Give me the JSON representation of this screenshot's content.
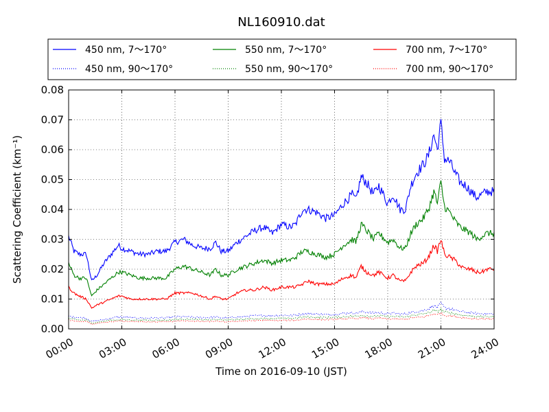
{
  "chart_data": {
    "type": "line",
    "title": "NL160910.dat",
    "xlabel": "Time on 2016-09-10 (JST)",
    "ylabel": "Scattering Coefficient (km⁻¹)",
    "xlim": [
      0,
      24
    ],
    "ylim": [
      0,
      0.08
    ],
    "x_ticks": [
      0,
      3,
      6,
      9,
      12,
      15,
      18,
      21,
      24
    ],
    "x_tick_labels": [
      "00:00",
      "03:00",
      "06:00",
      "09:00",
      "12:00",
      "15:00",
      "18:00",
      "21:00",
      "24:00"
    ],
    "y_ticks": [
      0,
      0.01,
      0.02,
      0.03,
      0.04,
      0.05,
      0.06,
      0.07,
      0.08
    ],
    "y_tick_labels": [
      "0.00",
      "0.01",
      "0.02",
      "0.03",
      "0.04",
      "0.05",
      "0.06",
      "0.07",
      "0.08"
    ],
    "grid": true,
    "legend_position": "top",
    "x_hours": [
      0,
      0.3,
      0.6,
      1.0,
      1.3,
      1.6,
      2.0,
      2.4,
      2.8,
      3.0,
      3.5,
      4.0,
      4.5,
      5.0,
      5.5,
      6.0,
      6.5,
      7.0,
      7.5,
      8.0,
      8.3,
      8.6,
      9.0,
      9.5,
      10.0,
      10.5,
      11.0,
      11.5,
      12.0,
      12.5,
      12.8,
      13.2,
      13.5,
      14.0,
      14.5,
      15.0,
      15.5,
      16.0,
      16.2,
      16.5,
      16.8,
      17.2,
      17.5,
      18.0,
      18.3,
      18.7,
      19.0,
      19.3,
      19.6,
      20.0,
      20.3,
      20.6,
      20.8,
      21.0,
      21.2,
      21.5,
      21.8,
      22.1,
      22.4,
      22.7,
      23.0,
      23.3,
      23.6,
      24.0
    ],
    "series": [
      {
        "name": "450 nm, 7～170°",
        "color": "#0000ff",
        "style": "solid",
        "values": [
          0.031,
          0.026,
          0.025,
          0.025,
          0.016,
          0.018,
          0.022,
          0.025,
          0.028,
          0.027,
          0.026,
          0.025,
          0.025,
          0.026,
          0.026,
          0.029,
          0.03,
          0.028,
          0.027,
          0.027,
          0.029,
          0.026,
          0.026,
          0.029,
          0.031,
          0.033,
          0.034,
          0.032,
          0.035,
          0.034,
          0.035,
          0.04,
          0.04,
          0.039,
          0.037,
          0.038,
          0.042,
          0.045,
          0.043,
          0.051,
          0.049,
          0.045,
          0.048,
          0.042,
          0.045,
          0.04,
          0.04,
          0.048,
          0.052,
          0.055,
          0.058,
          0.065,
          0.06,
          0.069,
          0.057,
          0.056,
          0.052,
          0.049,
          0.048,
          0.046,
          0.044,
          0.045,
          0.046,
          0.046
        ]
      },
      {
        "name": "450 nm, 90～170°",
        "color": "#0000ff",
        "style": "dotted",
        "values": [
          0.0042,
          0.004,
          0.0038,
          0.0036,
          0.0025,
          0.0027,
          0.0032,
          0.0036,
          0.004,
          0.004,
          0.0038,
          0.0036,
          0.0036,
          0.0037,
          0.0037,
          0.004,
          0.0041,
          0.0039,
          0.0038,
          0.0038,
          0.004,
          0.0037,
          0.0037,
          0.004,
          0.0042,
          0.0044,
          0.0045,
          0.0044,
          0.0046,
          0.0045,
          0.0046,
          0.005,
          0.0051,
          0.005,
          0.0048,
          0.0049,
          0.0052,
          0.0054,
          0.0052,
          0.0058,
          0.0056,
          0.0053,
          0.0055,
          0.0051,
          0.0053,
          0.005,
          0.005,
          0.0055,
          0.0058,
          0.0062,
          0.0068,
          0.0078,
          0.0072,
          0.0085,
          0.007,
          0.0068,
          0.0062,
          0.0058,
          0.0056,
          0.0054,
          0.0052,
          0.0051,
          0.005,
          0.005
        ]
      },
      {
        "name": "550 nm, 7～170°",
        "color": "#008000",
        "style": "solid",
        "values": [
          0.022,
          0.018,
          0.017,
          0.017,
          0.011,
          0.013,
          0.015,
          0.017,
          0.019,
          0.019,
          0.018,
          0.017,
          0.017,
          0.017,
          0.017,
          0.02,
          0.021,
          0.02,
          0.019,
          0.018,
          0.02,
          0.018,
          0.018,
          0.02,
          0.021,
          0.022,
          0.023,
          0.022,
          0.023,
          0.023,
          0.024,
          0.026,
          0.026,
          0.025,
          0.024,
          0.025,
          0.028,
          0.03,
          0.029,
          0.035,
          0.033,
          0.03,
          0.032,
          0.029,
          0.03,
          0.027,
          0.027,
          0.032,
          0.035,
          0.037,
          0.04,
          0.046,
          0.042,
          0.049,
          0.041,
          0.039,
          0.036,
          0.034,
          0.033,
          0.032,
          0.03,
          0.031,
          0.032,
          0.032
        ]
      },
      {
        "name": "550 nm, 90～170°",
        "color": "#008000",
        "style": "dotted",
        "values": [
          0.0035,
          0.0032,
          0.003,
          0.0029,
          0.002,
          0.0022,
          0.0026,
          0.0029,
          0.0031,
          0.0031,
          0.003,
          0.0029,
          0.0029,
          0.0029,
          0.0029,
          0.0032,
          0.0033,
          0.0032,
          0.0031,
          0.003,
          0.0032,
          0.003,
          0.003,
          0.0032,
          0.0033,
          0.0034,
          0.0035,
          0.0034,
          0.0036,
          0.0035,
          0.0036,
          0.0039,
          0.004,
          0.0039,
          0.0038,
          0.0039,
          0.0041,
          0.0043,
          0.0042,
          0.0046,
          0.0044,
          0.0042,
          0.0044,
          0.0041,
          0.0042,
          0.004,
          0.004,
          0.0044,
          0.0047,
          0.005,
          0.0054,
          0.0062,
          0.0058,
          0.0066,
          0.0056,
          0.0054,
          0.005,
          0.0047,
          0.0045,
          0.0043,
          0.0041,
          0.0041,
          0.0041,
          0.0041
        ]
      },
      {
        "name": "700 nm, 7～170°",
        "color": "#ff0000",
        "style": "solid",
        "values": [
          0.014,
          0.012,
          0.011,
          0.01,
          0.007,
          0.008,
          0.009,
          0.01,
          0.011,
          0.011,
          0.01,
          0.01,
          0.01,
          0.01,
          0.01,
          0.012,
          0.012,
          0.012,
          0.011,
          0.01,
          0.011,
          0.01,
          0.01,
          0.012,
          0.013,
          0.013,
          0.014,
          0.013,
          0.014,
          0.014,
          0.014,
          0.015,
          0.016,
          0.015,
          0.015,
          0.015,
          0.017,
          0.018,
          0.017,
          0.021,
          0.019,
          0.018,
          0.019,
          0.017,
          0.018,
          0.016,
          0.016,
          0.019,
          0.021,
          0.022,
          0.024,
          0.028,
          0.026,
          0.03,
          0.025,
          0.024,
          0.023,
          0.021,
          0.02,
          0.02,
          0.019,
          0.019,
          0.02,
          0.02
        ]
      },
      {
        "name": "700 nm, 90～170°",
        "color": "#ff0000",
        "style": "dotted",
        "values": [
          0.003,
          0.0027,
          0.0025,
          0.0024,
          0.0016,
          0.0018,
          0.0021,
          0.0024,
          0.0026,
          0.0026,
          0.0025,
          0.0024,
          0.0024,
          0.0024,
          0.0024,
          0.0026,
          0.0027,
          0.0026,
          0.0025,
          0.0025,
          0.0026,
          0.0024,
          0.0024,
          0.0026,
          0.0027,
          0.0028,
          0.0029,
          0.0028,
          0.0029,
          0.0029,
          0.0029,
          0.0032,
          0.0033,
          0.0032,
          0.0031,
          0.0032,
          0.0034,
          0.0035,
          0.0034,
          0.0038,
          0.0036,
          0.0034,
          0.0036,
          0.0033,
          0.0034,
          0.0032,
          0.0032,
          0.0036,
          0.0038,
          0.004,
          0.0044,
          0.005,
          0.0047,
          0.0054,
          0.0045,
          0.0044,
          0.0041,
          0.0038,
          0.0037,
          0.0035,
          0.0034,
          0.0034,
          0.0034,
          0.0034
        ]
      }
    ]
  }
}
